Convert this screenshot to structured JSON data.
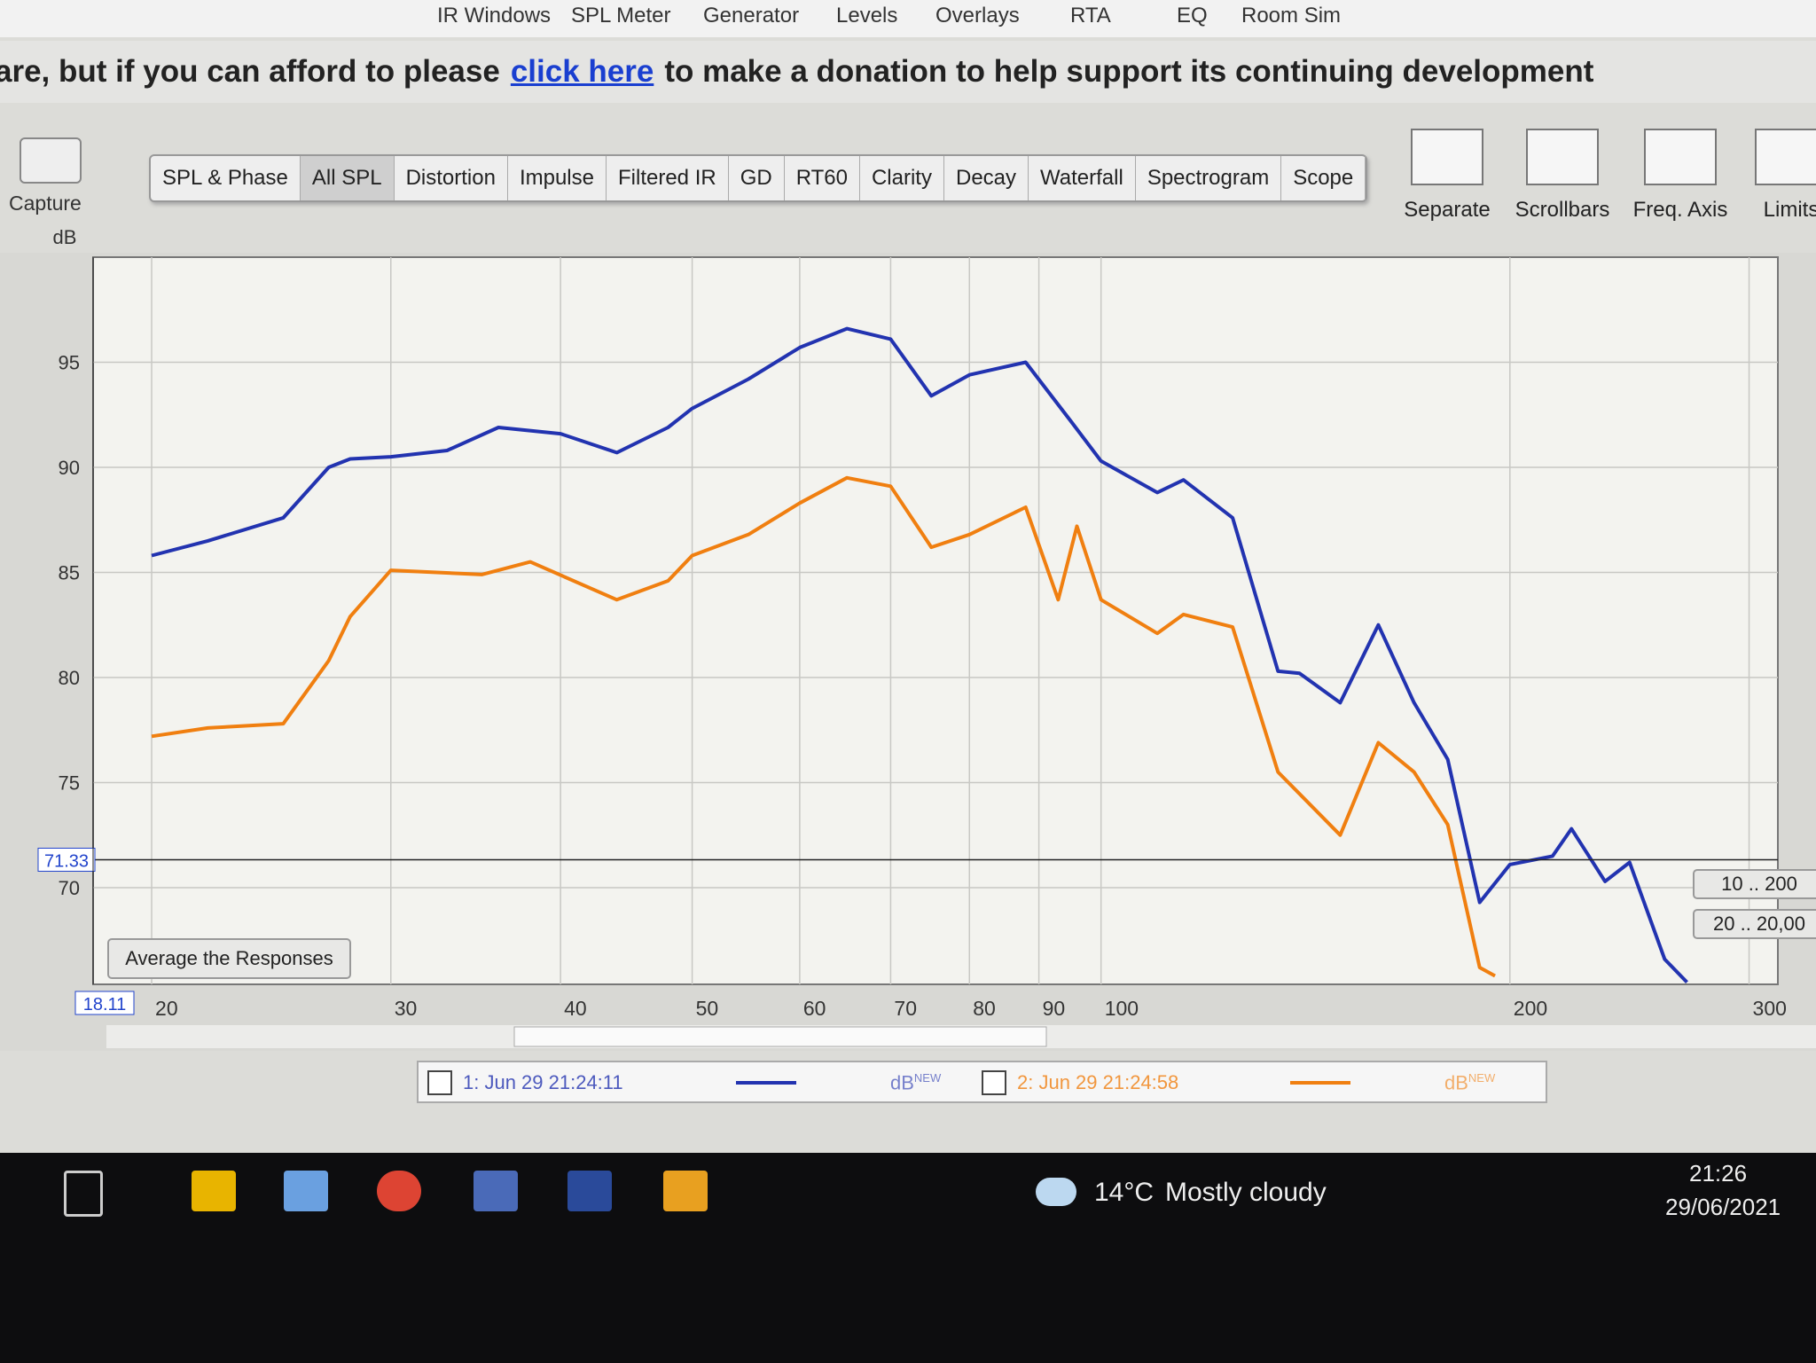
{
  "menu": [
    "IR Windows",
    "SPL Meter",
    "Generator",
    "Levels",
    "Overlays",
    "RTA",
    "EQ",
    "Room Sim"
  ],
  "banner": {
    "before": "are, but if you can afford to please",
    "link": "click here",
    "after": "to make a donation to help support its continuing development"
  },
  "capture": "Capture",
  "tabs": [
    "SPL & Phase",
    "All SPL",
    "Distortion",
    "Impulse",
    "Filtered IR",
    "GD",
    "RT60",
    "Clarity",
    "Decay",
    "Waterfall",
    "Spectrogram",
    "Scope"
  ],
  "tools": [
    "Separate",
    "Scrollbars",
    "Freq. Axis",
    "Limits"
  ],
  "average_button": "Average the Responses",
  "ranges": [
    "10 .. 200",
    "20 .. 20,00"
  ],
  "chart_data": {
    "type": "line",
    "y_label": "dB",
    "xscale": "log",
    "grid": true,
    "xlim": [
      18.11,
      315
    ],
    "ylim": [
      65.4,
      100
    ],
    "xticks": [
      20,
      30,
      40,
      50,
      60,
      70,
      80,
      90,
      100,
      200,
      300
    ],
    "yticks": [
      70,
      75,
      80,
      85,
      90,
      95
    ],
    "cursor_x": 18.11,
    "cursor_y": 71.33,
    "legend_unit": "dB",
    "legend_badge": "NEW",
    "series": [
      {
        "name": "1: Jun 29 21:24:11",
        "color": "#2233b0",
        "x": [
          20,
          22,
          25,
          27,
          28,
          30,
          33,
          36,
          40,
          44,
          48,
          50,
          55,
          60,
          65,
          70,
          75,
          80,
          88,
          95,
          100,
          110,
          115,
          125,
          135,
          140,
          150,
          160,
          170,
          180,
          190,
          200,
          215,
          222,
          235,
          245,
          260,
          270
        ],
        "values": [
          85.8,
          86.5,
          87.6,
          90.0,
          90.4,
          90.5,
          90.8,
          91.9,
          91.6,
          90.7,
          91.9,
          92.8,
          94.2,
          95.7,
          96.6,
          96.1,
          93.4,
          94.4,
          95.0,
          92.2,
          90.3,
          88.8,
          89.4,
          87.6,
          80.3,
          80.2,
          78.8,
          82.5,
          78.8,
          76.1,
          69.3,
          71.1,
          71.5,
          72.8,
          70.3,
          71.2,
          66.6,
          65.5
        ]
      },
      {
        "name": "2: Jun 29 21:24:58",
        "color": "#f07f10",
        "x": [
          20,
          22,
          25,
          27,
          28,
          30,
          35,
          38,
          44,
          48,
          50,
          55,
          60,
          65,
          70,
          75,
          80,
          88,
          93,
          96,
          100,
          110,
          115,
          125,
          135,
          150,
          160,
          170,
          180,
          190,
          195
        ],
        "values": [
          77.2,
          77.6,
          77.8,
          80.8,
          82.9,
          85.1,
          84.9,
          85.5,
          83.7,
          84.6,
          85.8,
          86.8,
          88.3,
          89.5,
          89.1,
          86.2,
          86.8,
          88.1,
          83.7,
          87.2,
          83.7,
          82.1,
          83.0,
          82.4,
          75.5,
          72.5,
          76.9,
          75.5,
          73.0,
          66.2,
          65.8
        ]
      }
    ]
  },
  "taskbar": {
    "temperature": "14°C",
    "weather": "Mostly cloudy",
    "time": "21:26",
    "date": "29/06/2021"
  }
}
